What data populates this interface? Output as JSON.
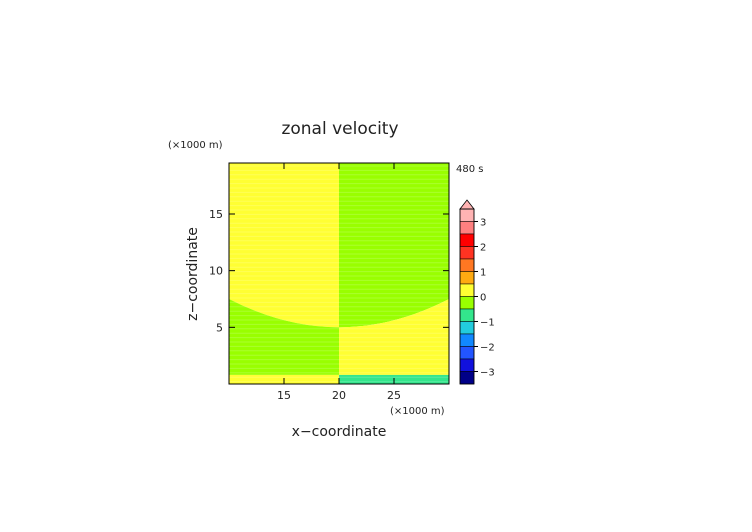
{
  "chart_data": {
    "type": "heatmap",
    "title": "zonal velocity",
    "xlabel": "x−coordinate",
    "ylabel": "z−coordinate",
    "x_unit": "(×1000 m)",
    "y_unit": "(×1000 m)",
    "time_label": "480 s",
    "xlim": [
      10,
      30
    ],
    "ylim": [
      0,
      19.5
    ],
    "x_ticks": [
      15,
      20,
      25
    ],
    "y_ticks": [
      5,
      10,
      15
    ],
    "x_tick_labels": [
      "15",
      "20",
      "25"
    ],
    "y_tick_labels": [
      "5",
      "10",
      "15"
    ],
    "regions": [
      {
        "name": "upper-left",
        "level": 0.25,
        "color": "#ffff33"
      },
      {
        "name": "upper-right",
        "level": -0.25,
        "color": "#99ff00"
      },
      {
        "name": "lower-left",
        "level": -0.25,
        "color": "#99ff00"
      },
      {
        "name": "lower-right",
        "level": 0.25,
        "color": "#ffff33"
      },
      {
        "name": "bottom-left-strip",
        "level": 0.25,
        "color": "#ffff33"
      },
      {
        "name": "bottom-right-strip",
        "level": -0.75,
        "color": "#33e68c"
      }
    ],
    "boundary_curve": {
      "center_x": 20,
      "min_z": 5,
      "edge_z": 7.5
    },
    "bottom_strip_top_z": 0.8,
    "colorbar": {
      "levels": [
        3.5,
        3,
        2.5,
        2,
        1.5,
        1,
        0.5,
        0,
        -0.5,
        -1,
        -1.5,
        -2,
        -2.5,
        -3,
        -3.5
      ],
      "colors": [
        "#ffb3b3",
        "#ff8080",
        "#ff0000",
        "#ff3322",
        "#ff7722",
        "#ffaa11",
        "#ffff33",
        "#99ff00",
        "#33e68c",
        "#22ccdd",
        "#1188ff",
        "#2255ff",
        "#1111dd",
        "#000088"
      ],
      "tick_values": [
        3,
        2,
        1,
        0,
        -1,
        -2,
        -3
      ],
      "tick_labels": [
        "3",
        "2",
        "1",
        "0",
        "−1",
        "−2",
        "−3"
      ]
    }
  }
}
